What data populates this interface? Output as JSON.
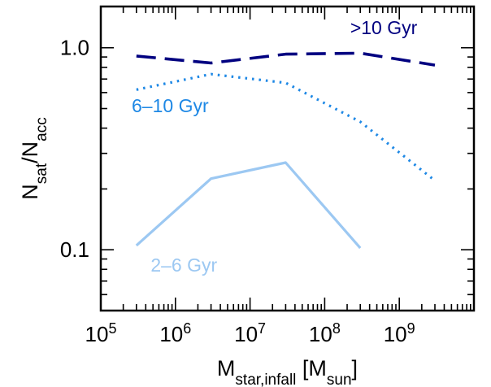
{
  "chart_data": {
    "type": "line",
    "title": "",
    "xlabel": {
      "main": "M",
      "sub": "star,infall",
      "bracket_open": " [M",
      "bracket_sub": "sun",
      "bracket_close": "]"
    },
    "ylabel": {
      "main": "N",
      "sub1": "sat",
      "slash": "/N",
      "sub2": "acc"
    },
    "xscale": "log",
    "yscale": "log",
    "xlim": [
      100000,
      10000000000
    ],
    "ylim": [
      0.05,
      1.6
    ],
    "x_ticks": [
      {
        "value": 100000,
        "base": "10",
        "exp": "5"
      },
      {
        "value": 1000000,
        "base": "10",
        "exp": "6"
      },
      {
        "value": 10000000,
        "base": "10",
        "exp": "7"
      },
      {
        "value": 100000000,
        "base": "10",
        "exp": "8"
      },
      {
        "value": 1000000000,
        "base": "10",
        "exp": "9"
      }
    ],
    "y_ticks": [
      {
        "value": 0.1,
        "label": "0.1"
      },
      {
        "value": 1.0,
        "label": "1.0"
      }
    ],
    "grid": false,
    "legend": "inline labels",
    "series": [
      {
        "name": ">10 Gyr",
        "color": "#000080",
        "style": "dashed",
        "x": [
          300000,
          3000000,
          30000000,
          300000000,
          3000000000
        ],
        "y": [
          0.91,
          0.84,
          0.93,
          0.94,
          0.82
        ]
      },
      {
        "name": "6–10 Gyr",
        "color": "#1E88E5",
        "style": "dotted",
        "x": [
          300000,
          3000000,
          30000000,
          300000000,
          3000000000
        ],
        "y": [
          0.62,
          0.74,
          0.67,
          0.43,
          0.22
        ]
      },
      {
        "name": "2–6 Gyr",
        "color": "#9CC8F2",
        "style": "solid",
        "x": [
          300000,
          3000000,
          30000000,
          300000000
        ],
        "y": [
          0.105,
          0.225,
          0.27,
          0.102
        ]
      }
    ]
  }
}
